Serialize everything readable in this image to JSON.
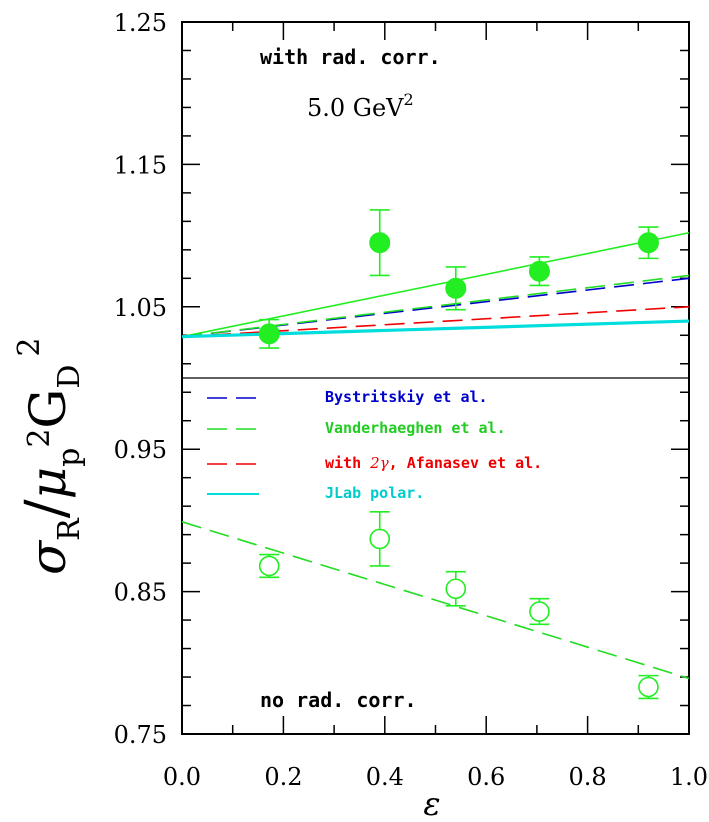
{
  "chart_data": {
    "type": "scatter",
    "title": "",
    "xlabel": "ε",
    "ylabel_parts": {
      "sigma": "σ",
      "sub_R": "R",
      "slash": "/",
      "mu": "μ",
      "sub_p": "p",
      "sup_2a": "2",
      "G": "G",
      "sub_D": "D",
      "sup_2b": "2"
    },
    "xlim": [
      0.0,
      1.0
    ],
    "ylim": [
      0.75,
      1.25
    ],
    "x_ticks": [
      0.0,
      0.2,
      0.4,
      0.6,
      0.8,
      1.0
    ],
    "x_tick_labels": [
      "0.0",
      "0.2",
      "0.4",
      "0.6",
      "0.8",
      "1.0"
    ],
    "y_ticks": [
      0.75,
      0.85,
      0.95,
      1.05,
      1.15,
      1.25
    ],
    "y_tick_labels": [
      "0.75",
      "0.85",
      "0.95",
      "1.05",
      "1.15",
      "1.25"
    ],
    "reference_line_y": 1.0,
    "annotations": {
      "top_label": "with rad. corr.",
      "q2_value": "5.0  GeV",
      "q2_sup": "2",
      "bottom_label": "no rad. corr."
    },
    "legend": {
      "placement": "center-left",
      "entries": [
        {
          "text": "Bystritskiy et al.",
          "color": "#0000cc",
          "style": "dashed"
        },
        {
          "text": "Vanderhaeghen et al.",
          "color": "#22dd22",
          "style": "dashed"
        },
        {
          "text_prefix": "with ",
          "text_math": "2γ",
          "text_suffix": ", Afanasev et al.",
          "color": "#ee0000",
          "style": "dashed"
        },
        {
          "text": "JLab polar.",
          "color": "#00dddd",
          "style": "solid"
        }
      ]
    },
    "series": [
      {
        "kind": "points-filled",
        "color": "#22ee22",
        "x": [
          0.172,
          0.39,
          0.54,
          0.705,
          0.92
        ],
        "y": [
          1.031,
          1.095,
          1.063,
          1.075,
          1.095
        ],
        "err": [
          0.01,
          0.023,
          0.015,
          0.01,
          0.011
        ]
      },
      {
        "kind": "points-open",
        "color": "#22ee22",
        "x": [
          0.172,
          0.39,
          0.54,
          0.705,
          0.92
        ],
        "y": [
          0.868,
          0.887,
          0.852,
          0.836,
          0.783
        ],
        "err": [
          0.008,
          0.019,
          0.012,
          0.009,
          0.008
        ]
      },
      {
        "kind": "line",
        "color": "#22ee22",
        "style": "solid",
        "x": [
          0.0,
          1.0
        ],
        "y": [
          1.029,
          1.102
        ]
      },
      {
        "kind": "line",
        "color": "#0000cc",
        "style": "dashed",
        "x": [
          0.0,
          1.0
        ],
        "y": [
          1.029,
          1.07
        ]
      },
      {
        "kind": "line",
        "color": "#22dd22",
        "style": "dashed",
        "x": [
          0.0,
          1.0
        ],
        "y": [
          1.029,
          1.072
        ]
      },
      {
        "kind": "line",
        "color": "#ee0000",
        "style": "dashed",
        "x": [
          0.0,
          1.0
        ],
        "y": [
          1.029,
          1.05
        ]
      },
      {
        "kind": "line",
        "color": "#00dddd",
        "style": "solid-thick",
        "x": [
          0.0,
          1.0
        ],
        "y": [
          1.029,
          1.04
        ]
      },
      {
        "kind": "line",
        "color": "#22dd22",
        "style": "dashed",
        "x": [
          0.0,
          1.0
        ],
        "y": [
          0.899,
          0.789
        ]
      }
    ]
  }
}
